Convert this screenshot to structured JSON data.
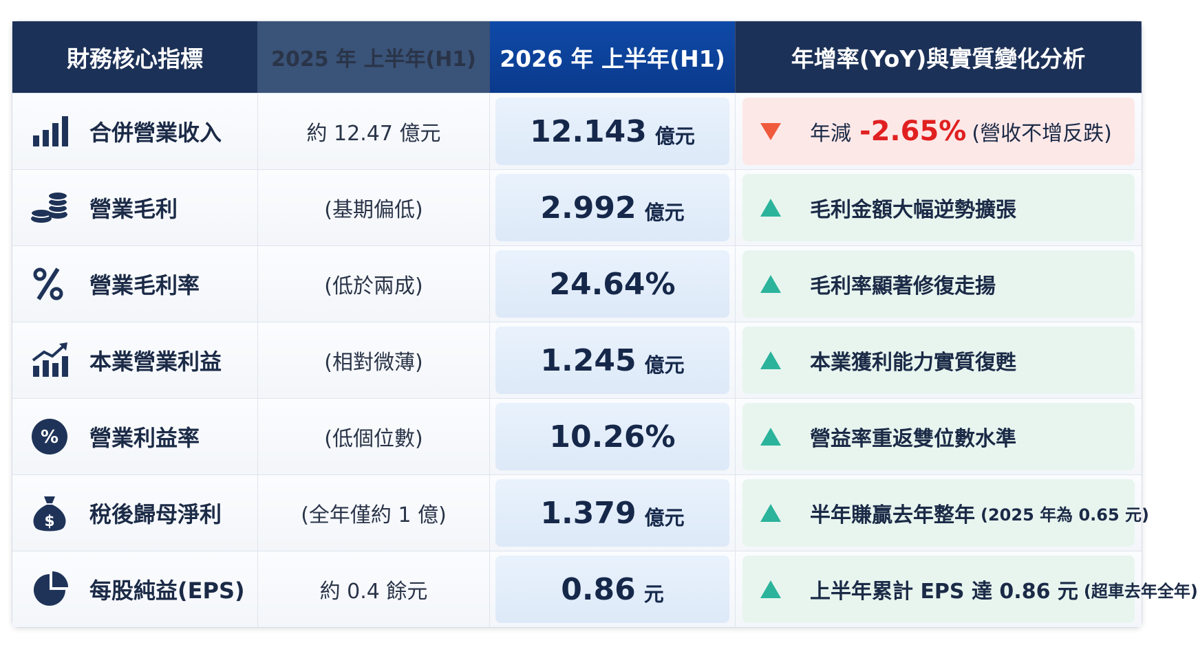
{
  "table": {
    "header": [
      "財務核心指標",
      "2025 年 上半年(H1)",
      "2026 年 上半年(H1)",
      "年增率(YoY)與實質變化分析"
    ],
    "rows": [
      {
        "metric": "合併營業收入",
        "h1_2025": "約 12.47 億元",
        "h1_2026": {
          "value": "12.143",
          "unit": "億元"
        },
        "analysis": {
          "text": "年減",
          "highlight": "-2.65%",
          "note": "(營收不增反跌)"
        }
      },
      {
        "metric": "營業毛利",
        "h1_2025": "(基期偏低)",
        "h1_2026": {
          "value": "2.992",
          "unit": "億元"
        },
        "analysis": {
          "text": "毛利金額大幅逆勢擴張"
        }
      },
      {
        "metric": "營業毛利率",
        "h1_2025": "(低於兩成)",
        "h1_2026": {
          "value": "24.64%"
        },
        "analysis": {
          "text": "毛利率顯著修復走揚"
        }
      },
      {
        "metric": "本業營業利益",
        "h1_2025": "(相對微薄)",
        "h1_2026": {
          "value": "1.245",
          "unit": "億元"
        },
        "analysis": {
          "text": "本業獲利能力實質復甦"
        }
      },
      {
        "metric": "營業利益率",
        "h1_2025": "(低個位數)",
        "h1_2026": {
          "value": "10.26%"
        },
        "analysis": {
          "text": "營益率重返雙位數水準"
        }
      },
      {
        "metric": "稅後歸母淨利",
        "h1_2025": "(全年僅約 1 億)",
        "h1_2026": {
          "value": "1.379",
          "unit": "億元"
        },
        "analysis": {
          "text": "半年賺贏去年整年",
          "note": "(2025 年為 0.65 元)"
        }
      },
      {
        "metric": "每股純益(EPS)",
        "h1_2025": "約 0.4 餘元",
        "h1_2026": {
          "value": "0.86",
          "unit": "元"
        },
        "analysis": {
          "text": "上半年累計 EPS 達 0.86 元",
          "note": "(超車去年全年)"
        }
      }
    ]
  }
}
